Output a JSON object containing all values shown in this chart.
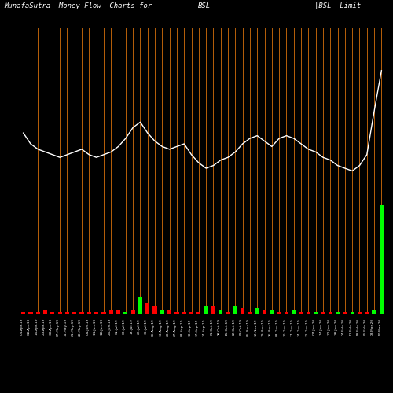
{
  "title_left": "MunafaSutra  Money Flow  Charts for",
  "title_mid": "BSL",
  "title_right": "|BSL  Limit",
  "background_color": "#000000",
  "orange_line_color": "#B8600A",
  "white_line_color": "#FFFFFF",
  "green_bar_color": "#00FF00",
  "red_bar_color": "#FF0000",
  "n_bars": 50,
  "dates": [
    "01-Apr-19",
    "08-Apr-19",
    "15-Apr-19",
    "23-Apr-19",
    "30-Apr-19",
    "07-May-19",
    "14-May-19",
    "21-May-19",
    "28-May-19",
    "04-Jun-19",
    "11-Jun-19",
    "18-Jun-19",
    "25-Jun-19",
    "02-Jul-19",
    "09-Jul-19",
    "16-Jul-19",
    "23-Jul-19",
    "30-Jul-19",
    "06-Aug-19",
    "13-Aug-19",
    "20-Aug-19",
    "27-Aug-19",
    "03-Sep-19",
    "10-Sep-19",
    "17-Sep-19",
    "24-Sep-19",
    "01-Oct-19",
    "08-Oct-19",
    "15-Oct-19",
    "22-Oct-19",
    "29-Oct-19",
    "05-Nov-19",
    "12-Nov-19",
    "19-Nov-19",
    "26-Nov-19",
    "03-Dec-19",
    "10-Dec-19",
    "17-Dec-19",
    "24-Dec-19",
    "31-Dec-19",
    "07-Jan-20",
    "14-Jan-20",
    "21-Jan-20",
    "28-Jan-20",
    "04-Feb-20",
    "11-Feb-20",
    "18-Feb-20",
    "25-Feb-20",
    "03-Mar-20",
    "10-Mar-20"
  ],
  "price_line": [
    0.72,
    0.68,
    0.66,
    0.65,
    0.64,
    0.63,
    0.64,
    0.65,
    0.66,
    0.64,
    0.63,
    0.64,
    0.65,
    0.67,
    0.7,
    0.74,
    0.76,
    0.72,
    0.69,
    0.67,
    0.66,
    0.67,
    0.68,
    0.64,
    0.61,
    0.59,
    0.6,
    0.62,
    0.63,
    0.65,
    0.68,
    0.7,
    0.71,
    0.69,
    0.67,
    0.7,
    0.71,
    0.7,
    0.68,
    0.66,
    0.65,
    0.63,
    0.62,
    0.6,
    0.59,
    0.58,
    0.6,
    0.64,
    0.8,
    0.95
  ],
  "mf_values": [
    -0.01,
    -0.01,
    -0.01,
    -0.02,
    -0.01,
    -0.01,
    -0.01,
    -0.01,
    -0.01,
    -0.01,
    -0.01,
    -0.01,
    -0.02,
    -0.02,
    0.01,
    -0.02,
    0.08,
    -0.05,
    -0.04,
    0.02,
    -0.02,
    -0.01,
    -0.01,
    -0.01,
    -0.01,
    0.04,
    -0.04,
    0.02,
    -0.01,
    0.04,
    -0.03,
    -0.01,
    0.03,
    -0.02,
    0.02,
    -0.01,
    -0.01,
    0.02,
    -0.01,
    -0.01,
    0.01,
    -0.01,
    -0.01,
    0.01,
    -0.01,
    0.01,
    -0.01,
    -0.01,
    0.02,
    0.5
  ],
  "mf_colors": [
    "red",
    "red",
    "red",
    "red",
    "red",
    "red",
    "red",
    "red",
    "red",
    "red",
    "red",
    "red",
    "red",
    "red",
    "green",
    "red",
    "green",
    "red",
    "red",
    "green",
    "red",
    "red",
    "red",
    "red",
    "red",
    "green",
    "red",
    "green",
    "red",
    "green",
    "red",
    "red",
    "green",
    "red",
    "green",
    "red",
    "red",
    "green",
    "red",
    "red",
    "green",
    "red",
    "red",
    "green",
    "red",
    "green",
    "red",
    "red",
    "green",
    "green"
  ],
  "title_fontsize": 6.5,
  "figsize": [
    5.0,
    5.0
  ],
  "dpi": 100
}
